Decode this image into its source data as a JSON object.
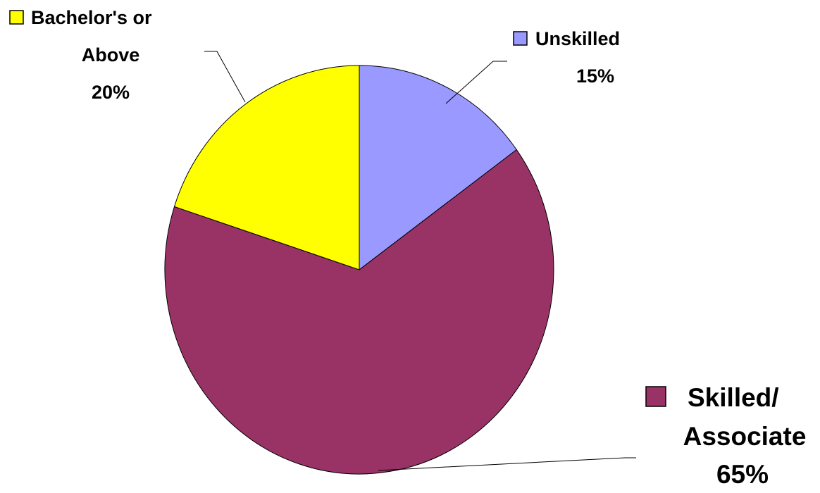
{
  "chart_data": {
    "type": "pie",
    "title": "",
    "slices": [
      {
        "label_lines": [
          "Unskilled"
        ],
        "percent_label": "15%",
        "value": 15,
        "color": "#9999FF"
      },
      {
        "label_lines": [
          "Skilled/",
          "Associate"
        ],
        "percent_label": "65%",
        "value": 65,
        "color": "#993366"
      },
      {
        "label_lines": [
          "Bachelor's or",
          "Above"
        ],
        "percent_label": "20%",
        "value": 20,
        "color": "#FFFF00"
      }
    ],
    "start_angle_deg": 0,
    "direction": "clockwise",
    "legend_keys_in_labels": true
  }
}
